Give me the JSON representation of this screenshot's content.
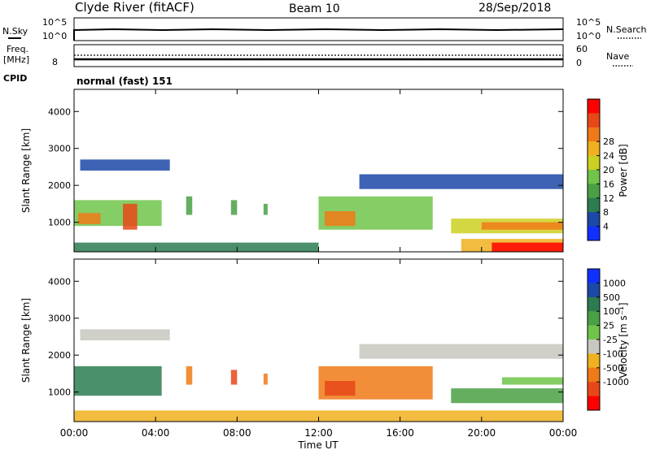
{
  "header": {
    "station": "Clyde River (fitACF)",
    "beam": "Beam 10",
    "date": "28/Sep/2018"
  },
  "top_panels": {
    "nsky_label": "N.Sky",
    "nsky_ticks": [
      "10^5",
      "10^0"
    ],
    "nsearch_label": "N.Search",
    "nsearch_ticks": [
      "10^5",
      "10^0"
    ],
    "freq_label_1": "Freq.",
    "freq_label_2": "[MHz]",
    "freq_ticks": [
      "8"
    ],
    "nave_label": "Nave",
    "nave_ticks": [
      "60",
      "0"
    ],
    "cpid_label": "CPID",
    "cpid_value": "normal (fast) 151"
  },
  "chart_data": [
    {
      "type": "heatmap",
      "name": "power",
      "ylabel": "Slant Range [km]",
      "ylim": [
        200,
        4600
      ],
      "yticks": [
        "1000",
        "2000",
        "3000",
        "4000"
      ],
      "colorbar_label": "Power [dB]",
      "colorbar_ticks": [
        "4",
        "8",
        "12",
        "16",
        "20",
        "24",
        "28"
      ],
      "colorbar_colors": [
        "#1030ff",
        "#1c48a8",
        "#2c7c50",
        "#4aa044",
        "#70c44a",
        "#ccd020",
        "#f0b020",
        "#f07a18",
        "#e84818",
        "#ff0000"
      ],
      "regions": [
        {
          "t0": 0.3,
          "t1": 4.7,
          "r0": 2400,
          "r1": 2700,
          "level": 1
        },
        {
          "t0": 0.0,
          "t1": 4.3,
          "r0": 900,
          "r1": 1600,
          "level": 4
        },
        {
          "t0": 0.2,
          "t1": 1.3,
          "r0": 950,
          "r1": 1250,
          "level": 7
        },
        {
          "t0": 2.4,
          "t1": 3.1,
          "r0": 800,
          "r1": 1500,
          "level": 8
        },
        {
          "t0": 5.5,
          "t1": 5.8,
          "r0": 1200,
          "r1": 1700,
          "level": 3
        },
        {
          "t0": 7.7,
          "t1": 8.0,
          "r0": 1200,
          "r1": 1600,
          "level": 3
        },
        {
          "t0": 9.3,
          "t1": 9.5,
          "r0": 1200,
          "r1": 1500,
          "level": 3
        },
        {
          "t0": 12.0,
          "t1": 17.6,
          "r0": 800,
          "r1": 1700,
          "level": 4
        },
        {
          "t0": 12.3,
          "t1": 13.8,
          "r0": 900,
          "r1": 1300,
          "level": 7
        },
        {
          "t0": 14.0,
          "t1": 24.0,
          "r0": 1900,
          "r1": 2300,
          "level": 1
        },
        {
          "t0": 18.5,
          "t1": 24.0,
          "r0": 700,
          "r1": 1100,
          "level": 5
        },
        {
          "t0": 20.0,
          "t1": 24.0,
          "r0": 800,
          "r1": 1000,
          "level": 7
        },
        {
          "t0": 19.0,
          "t1": 24.0,
          "r0": 200,
          "r1": 550,
          "level": 6
        },
        {
          "t0": 20.5,
          "t1": 24.0,
          "r0": 200,
          "r1": 450,
          "level": 9
        },
        {
          "t0": 0.0,
          "t1": 12.0,
          "r0": 200,
          "r1": 450,
          "level": 2
        }
      ]
    },
    {
      "type": "heatmap",
      "name": "velocity",
      "ylabel": "Slant Range [km]",
      "ylim": [
        200,
        4600
      ],
      "yticks": [
        "1000",
        "2000",
        "3000",
        "4000"
      ],
      "xticks": [
        "00:00",
        "04:00",
        "08:00",
        "12:00",
        "16:00",
        "20:00",
        "00:00"
      ],
      "xlabel": "Time UT",
      "xlim": [
        0,
        24
      ],
      "colorbar_label": "Velocity [m s⁻¹]",
      "colorbar_ticks": [
        "1000",
        "500",
        "100",
        "25",
        "-25",
        "-100",
        "-500",
        "-1000"
      ],
      "colorbar_colors": [
        "#1030ff",
        "#1c48a8",
        "#2c7c50",
        "#4aa044",
        "#70c44a",
        "#c8c8c0",
        "#f0b020",
        "#f07a18",
        "#e84818",
        "#ff0000"
      ],
      "regions": [
        {
          "t0": 0.3,
          "t1": 4.7,
          "r0": 2400,
          "r1": 2700,
          "level": 5
        },
        {
          "t0": 0.0,
          "t1": 4.3,
          "r0": 900,
          "r1": 1700,
          "level": 2
        },
        {
          "t0": 5.5,
          "t1": 5.8,
          "r0": 1200,
          "r1": 1700,
          "level": 7
        },
        {
          "t0": 7.7,
          "t1": 8.0,
          "r0": 1200,
          "r1": 1600,
          "level": 8
        },
        {
          "t0": 9.3,
          "t1": 9.5,
          "r0": 1200,
          "r1": 1500,
          "level": 7
        },
        {
          "t0": 12.0,
          "t1": 17.6,
          "r0": 800,
          "r1": 1700,
          "level": 7
        },
        {
          "t0": 12.3,
          "t1": 13.8,
          "r0": 900,
          "r1": 1300,
          "level": 8
        },
        {
          "t0": 14.0,
          "t1": 24.0,
          "r0": 1900,
          "r1": 2300,
          "level": 5
        },
        {
          "t0": 18.5,
          "t1": 24.0,
          "r0": 700,
          "r1": 1100,
          "level": 3
        },
        {
          "t0": 21.0,
          "t1": 24.0,
          "r0": 1200,
          "r1": 1400,
          "level": 4
        },
        {
          "t0": 0.0,
          "t1": 24.0,
          "r0": 200,
          "r1": 500,
          "level": 6
        }
      ]
    }
  ]
}
